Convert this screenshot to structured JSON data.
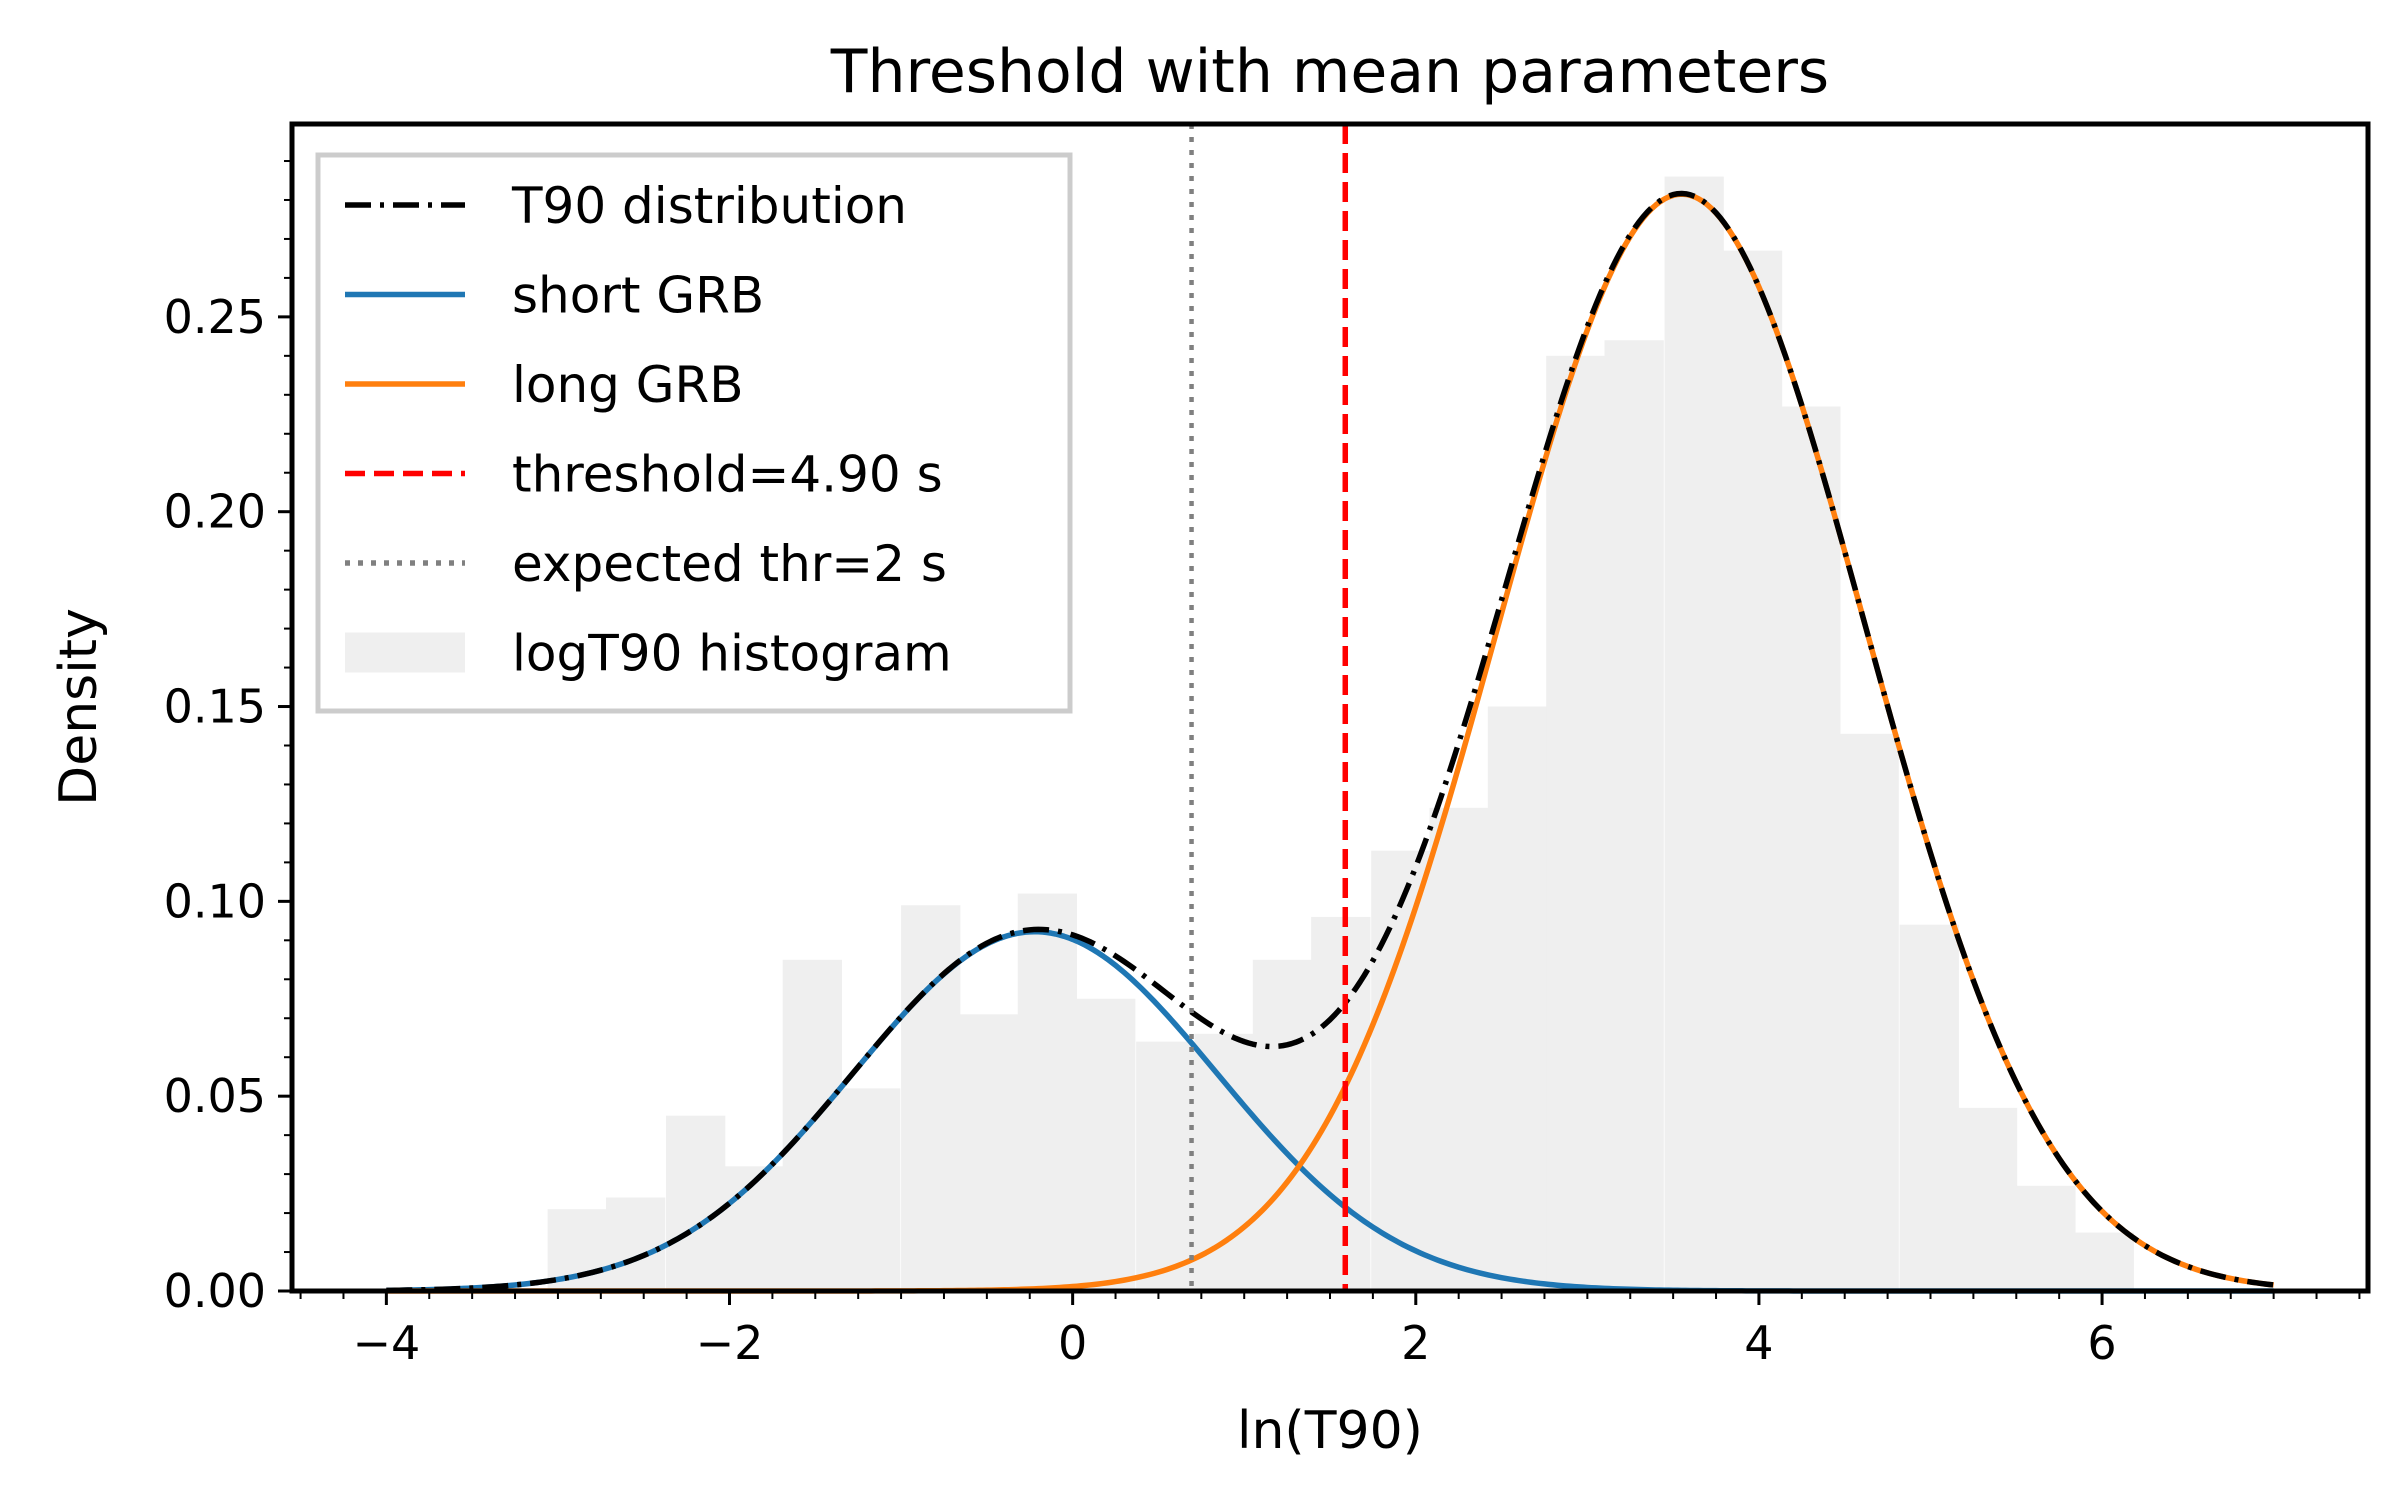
{
  "chart_data": {
    "type": "line",
    "title": "Threshold with mean parameters",
    "xlabel": "ln(T90)",
    "ylabel": "Density",
    "xlim": [
      -4.55,
      7.55
    ],
    "ylim": [
      0.0,
      0.2995
    ],
    "x_ticks": [
      -4,
      -2,
      0,
      2,
      4,
      6
    ],
    "x_tick_labels": [
      "−4",
      "−2",
      "0",
      "2",
      "4",
      "6"
    ],
    "y_ticks": [
      0.0,
      0.05,
      0.1,
      0.15,
      0.2,
      0.25
    ],
    "y_tick_labels": [
      "0.00",
      "0.05",
      "0.10",
      "0.15",
      "0.20",
      "0.25"
    ],
    "grid": false,
    "legend_position": "top-left",
    "colors": {
      "total": "#000000",
      "short": "#1f77b4",
      "long": "#ff7f0e",
      "threshold": "#ff0000",
      "expected": "#808080",
      "histogram": "#efefef"
    },
    "histogram": {
      "name": "logT90 histogram",
      "bin_width": 0.342,
      "bins": [
        {
          "x0": -3.06,
          "y": 0.021
        },
        {
          "x0": -2.72,
          "y": 0.024
        },
        {
          "x0": -2.37,
          "y": 0.045
        },
        {
          "x0": -2.03,
          "y": 0.032
        },
        {
          "x0": -1.69,
          "y": 0.085
        },
        {
          "x0": -1.35,
          "y": 0.052
        },
        {
          "x0": -1.0,
          "y": 0.099
        },
        {
          "x0": -0.66,
          "y": 0.071
        },
        {
          "x0": -0.32,
          "y": 0.102
        },
        {
          "x0": 0.02,
          "y": 0.075
        },
        {
          "x0": 0.37,
          "y": 0.064
        },
        {
          "x0": 0.71,
          "y": 0.066
        },
        {
          "x0": 1.05,
          "y": 0.085
        },
        {
          "x0": 1.39,
          "y": 0.096
        },
        {
          "x0": 1.74,
          "y": 0.113
        },
        {
          "x0": 2.08,
          "y": 0.124
        },
        {
          "x0": 2.42,
          "y": 0.15
        },
        {
          "x0": 2.76,
          "y": 0.24
        },
        {
          "x0": 3.1,
          "y": 0.244
        },
        {
          "x0": 3.45,
          "y": 0.286
        },
        {
          "x0": 3.79,
          "y": 0.267
        },
        {
          "x0": 4.13,
          "y": 0.227
        },
        {
          "x0": 4.47,
          "y": 0.143
        },
        {
          "x0": 4.82,
          "y": 0.094
        },
        {
          "x0": 5.16,
          "y": 0.047
        },
        {
          "x0": 5.5,
          "y": 0.027
        },
        {
          "x0": 5.84,
          "y": 0.015
        }
      ]
    },
    "series": [
      {
        "name": "T90 distribution",
        "kind": "dashdot",
        "key": "total"
      },
      {
        "name": "short GRB",
        "kind": "solid",
        "key": "short",
        "weight": 0.245,
        "mu": -0.22,
        "sigma": 1.06
      },
      {
        "name": "long GRB",
        "kind": "solid",
        "key": "long",
        "weight": 0.755,
        "mu": 3.55,
        "sigma": 1.07
      }
    ],
    "curve_x_range": [
      -4.0,
      7.0
    ],
    "vlines": [
      {
        "name": "threshold=4.90 s",
        "x": 1.589,
        "style": "dashed",
        "key": "threshold"
      },
      {
        "name": "expected thr=2 s",
        "x": 0.693,
        "style": "dotted",
        "key": "expected"
      }
    ],
    "legend": [
      {
        "label": "T90 distribution",
        "key": "total",
        "style": "dashdot"
      },
      {
        "label": "short GRB",
        "key": "short",
        "style": "solid"
      },
      {
        "label": "long GRB",
        "key": "long",
        "style": "solid"
      },
      {
        "label": "threshold=4.90 s",
        "key": "threshold",
        "style": "dashed"
      },
      {
        "label": "expected thr=2 s",
        "key": "expected",
        "style": "dotted"
      },
      {
        "label": "logT90 histogram",
        "key": "histogram",
        "style": "patch"
      }
    ]
  }
}
